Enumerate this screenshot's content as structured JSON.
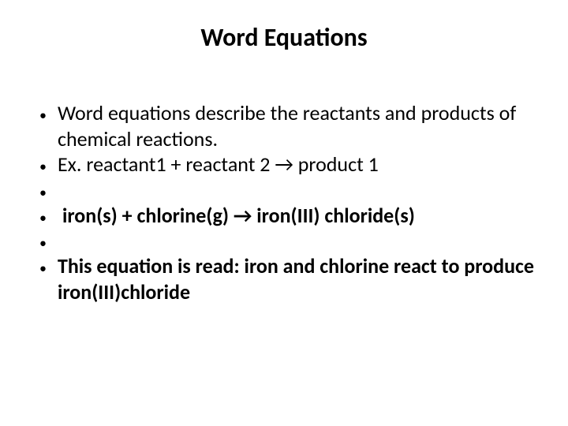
{
  "slide": {
    "title": "Word Equations",
    "title_fontsize": 32,
    "body_fontsize": 26,
    "text_color": "#000000",
    "background_color": "#ffffff",
    "bullet_char": "•",
    "bullet_fontsize": 18,
    "arrow_char": "→",
    "bullets": [
      {
        "text": "Word equations describe the reactants and products of chemical reactions.",
        "bold": false,
        "empty": false,
        "indent": false
      },
      {
        "text": "Ex. reactant1 + reactant 2 → product 1",
        "bold": false,
        "empty": false,
        "indent": false
      },
      {
        "text": "",
        "bold": false,
        "empty": true,
        "indent": false
      },
      {
        "text": " iron(s) + chlorine(g) → iron(III) chloride(s)",
        "bold": true,
        "empty": false,
        "indent": true
      },
      {
        "text": "",
        "bold": false,
        "empty": true,
        "indent": false
      },
      {
        "text": "This equation is read:  iron and chlorine react to produce iron(III)chloride",
        "bold": true,
        "empty": false,
        "indent": false
      }
    ]
  }
}
